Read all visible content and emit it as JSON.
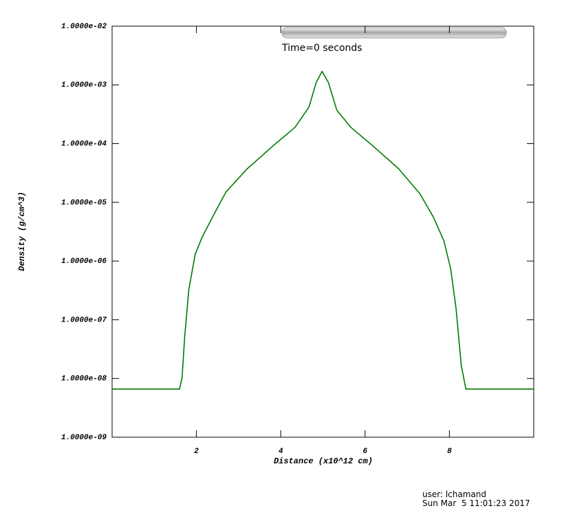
{
  "chart_data": {
    "type": "line",
    "annotation": "Time=0 seconds",
    "xlabel": "Distance (x10^12 cm)",
    "ylabel": "Density (g/cm^3)",
    "user": "user: lchamand",
    "date": "Sun Mar  5 11:01:23 2017",
    "log_y": true,
    "xlim": [
      0,
      10
    ],
    "ylim": [
      1e-09,
      0.01
    ],
    "xticks": [
      2,
      4,
      6,
      8
    ],
    "yticks": [
      {
        "value": 1e-09,
        "label": "1.0000e-09"
      },
      {
        "value": 1e-08,
        "label": "1.0000e-08"
      },
      {
        "value": 1e-07,
        "label": "1.0000e-07"
      },
      {
        "value": 1e-06,
        "label": "1.0000e-06"
      },
      {
        "value": 1e-05,
        "label": "1.0000e-05"
      },
      {
        "value": 0.0001,
        "label": "1.0000e-04"
      },
      {
        "value": 0.001,
        "label": "1.0000e-03"
      },
      {
        "value": 0.01,
        "label": "1.0000e-02"
      }
    ],
    "x": [
      0,
      1.6,
      1.66,
      1.72,
      1.82,
      1.97,
      2.13,
      2.38,
      2.7,
      3.2,
      3.85,
      4.34,
      4.67,
      4.84,
      4.98,
      5.13,
      5.33,
      5.66,
      6.15,
      6.8,
      7.3,
      7.62,
      7.87,
      8.03,
      8.16,
      8.28,
      8.39,
      10
    ],
    "series": [
      {
        "color": "#007a00",
        "values": [
          6.6e-09,
          6.6e-09,
          1.05e-08,
          5e-08,
          3.3e-07,
          1.3e-06,
          2.5e-06,
          5.6e-06,
          1.5e-05,
          3.7e-05,
          9.6e-05,
          0.00019,
          0.00042,
          0.0011,
          0.0017,
          0.0011,
          0.00037,
          0.00019,
          9.6e-05,
          3.7e-05,
          1.4e-05,
          5.6e-06,
          2.2e-06,
          7.4e-07,
          1.5e-07,
          1.7e-08,
          6.6e-09,
          6.6e-09
        ]
      }
    ]
  }
}
